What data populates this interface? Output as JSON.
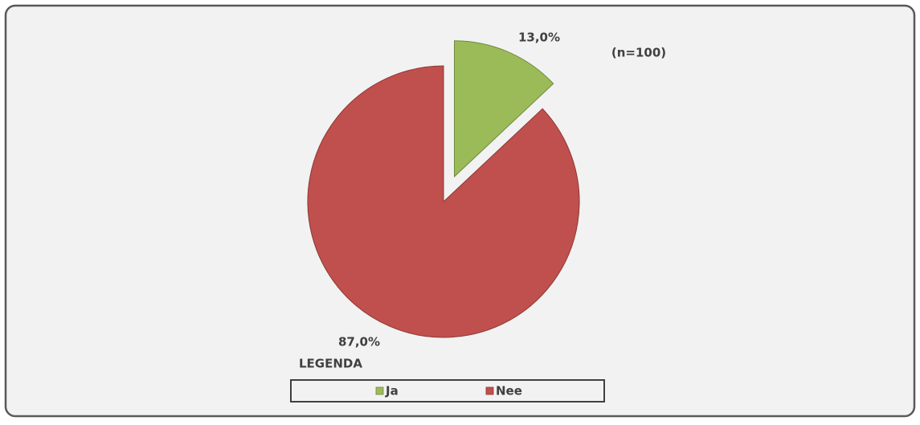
{
  "chart_data": {
    "type": "pie",
    "categories": [
      "Ja",
      "Nee"
    ],
    "values": [
      13,
      87
    ],
    "value_labels": [
      "13,0%",
      "87,0%"
    ],
    "colors": [
      "#9bbb59",
      "#c0504d"
    ],
    "annotation": "(n=100)",
    "legend_title": "LEGENDA"
  }
}
